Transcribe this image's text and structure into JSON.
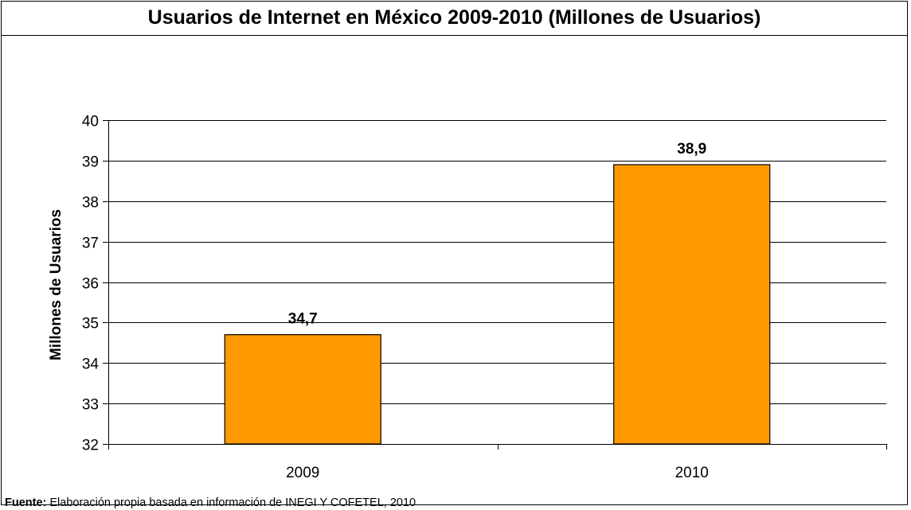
{
  "chart_data": {
    "type": "bar",
    "title": "Usuarios de Internet en México 2009-2010 (Millones de Usuarios)",
    "xlabel": "",
    "ylabel": "Millones de Usuarios",
    "categories": [
      "2009",
      "2010"
    ],
    "values": [
      34.7,
      38.9
    ],
    "value_labels": [
      "34,7",
      "38,9"
    ],
    "ylim": [
      32,
      40
    ],
    "yticks": [
      32,
      33,
      34,
      35,
      36,
      37,
      38,
      39,
      40
    ],
    "grid": true,
    "legend": "none",
    "bar_color": "#FF9900",
    "bar_edge_color": "#000000"
  },
  "source": {
    "label": "Fuente:",
    "text": " Elaboración propia basada en información de INEGI Y COFETEL, 2010"
  }
}
